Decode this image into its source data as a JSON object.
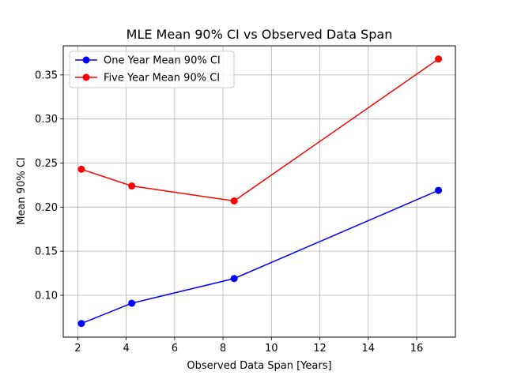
{
  "chart_data": {
    "type": "line",
    "title": "MLE Mean 90% CI vs Observed Data Span",
    "xlabel": "Observed Data Span [Years]",
    "ylabel": "Mean 90% CI",
    "xlim": [
      1.4,
      17.6
    ],
    "ylim": [
      0.0525,
      0.383
    ],
    "xticks": [
      2,
      4,
      6,
      8,
      10,
      12,
      14,
      16
    ],
    "yticks": [
      0.1,
      0.15,
      0.2,
      0.25,
      0.3,
      0.35
    ],
    "grid": true,
    "legend_position": "upper-left",
    "series": [
      {
        "name": "One Year Mean 90% CI",
        "color": "#0000ff",
        "marker": "circle",
        "x": [
          2.15,
          4.23,
          8.46,
          16.9
        ],
        "y": [
          0.068,
          0.091,
          0.119,
          0.219
        ]
      },
      {
        "name": "Five Year Mean 90% CI",
        "color": "#ff0000",
        "marker": "circle",
        "x": [
          2.15,
          4.23,
          8.46,
          16.9
        ],
        "y": [
          0.243,
          0.224,
          0.207,
          0.368
        ]
      }
    ]
  }
}
